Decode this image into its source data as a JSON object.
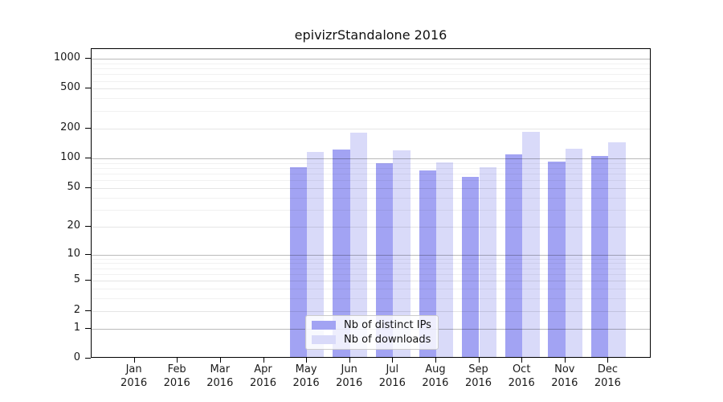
{
  "title": "epivizrStandalone 2016",
  "chart_data": {
    "type": "bar",
    "title": "epivizrStandalone 2016",
    "categories": [
      "Jan",
      "Feb",
      "Mar",
      "Apr",
      "May",
      "Jun",
      "Jul",
      "Aug",
      "Sep",
      "Oct",
      "Nov",
      "Dec"
    ],
    "x_sublabel": "2016",
    "series": [
      {
        "name": "Nb of distinct IPs",
        "color": "#a2a3f3",
        "values": [
          0,
          0,
          0,
          0,
          78,
          118,
          86,
          73,
          63,
          106,
          90,
          102
        ]
      },
      {
        "name": "Nb of downloads",
        "color": "#d9daf9",
        "values": [
          0,
          0,
          0,
          0,
          112,
          175,
          117,
          88,
          78,
          178,
          121,
          140
        ]
      }
    ],
    "y_ticks": [
      0,
      1,
      2,
      5,
      10,
      20,
      50,
      100,
      200,
      500,
      1000
    ],
    "y_scale": "log1p",
    "ylim": [
      0,
      1250
    ],
    "xlim_padding_months": 1,
    "grid": "horizontal",
    "legend_position": "lower-center"
  }
}
